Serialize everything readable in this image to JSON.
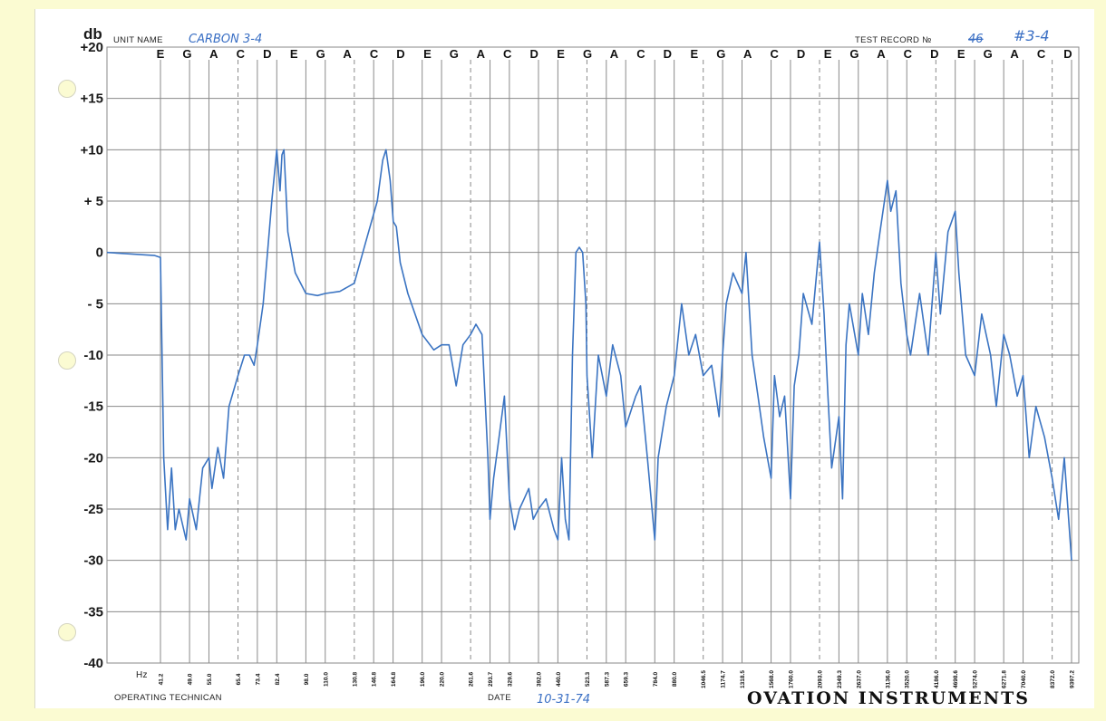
{
  "header": {
    "unit_name_label": "UNIT NAME",
    "unit_name_value": "CARBON 3-4",
    "test_record_label": "TEST RECORD №",
    "test_record_struck": "46",
    "test_record_value": "#3-4",
    "db_label": "db"
  },
  "footer": {
    "technician_label": "OPERATING TECHNICAN",
    "date_label": "DATE",
    "date_value": "10-31-74",
    "brand": "OVATION INSTRUMENTS"
  },
  "colors": {
    "trace": "#3b74c2",
    "grid": "#8a8a8a",
    "handwriting": "#3a6fc4"
  },
  "chart_data": {
    "type": "line",
    "title": "",
    "ylabel": "db",
    "xlabel": "Hz",
    "ylim": [
      -40,
      20
    ],
    "x_scale": "log",
    "grid": true,
    "y_ticks": [
      "+20",
      "+15",
      "+10",
      "+ 5",
      "0",
      "- 5",
      "-10",
      "-15",
      "-20",
      "-25",
      "-30",
      "-35",
      "-40"
    ],
    "note_labels": [
      "E",
      "G",
      "A",
      "C",
      "D",
      "E",
      "G",
      "A",
      "C",
      "D",
      "E",
      "G",
      "A",
      "C",
      "D",
      "E",
      "G",
      "A",
      "C",
      "D",
      "E",
      "G",
      "A",
      "C",
      "D",
      "E",
      "G",
      "A",
      "C",
      "D",
      "E",
      "G",
      "A",
      "C",
      "D"
    ],
    "x_tick_labels": [
      "41.2",
      "49.0",
      "55.0",
      "65.4",
      "73.4",
      "82.4",
      "98.0",
      "110.0",
      "130.8",
      "146.8",
      "164.8",
      "196.0",
      "220.0",
      "261.6",
      "293.7",
      "329.6",
      "392.0",
      "440.0",
      "523.3",
      "587.3",
      "659.3",
      "784.0",
      "880.0",
      "1046.5",
      "1174.7",
      "1318.5",
      "1568.0",
      "1760.0",
      "2093.0",
      "2349.3",
      "2637.0",
      "3136.0",
      "3520.0",
      "4186.0",
      "4698.6",
      "5274.0",
      "6271.8",
      "7040.0",
      "8372.0",
      "9397.2"
    ],
    "series": [
      {
        "name": "",
        "points": [
          [
            30,
            0
          ],
          [
            40,
            -0.3
          ],
          [
            41.2,
            -0.5
          ],
          [
            42,
            -20
          ],
          [
            43,
            -27
          ],
          [
            44,
            -21
          ],
          [
            45,
            -27
          ],
          [
            46,
            -25
          ],
          [
            48,
            -28
          ],
          [
            49,
            -24
          ],
          [
            51,
            -27
          ],
          [
            53,
            -21
          ],
          [
            55,
            -20
          ],
          [
            56,
            -23
          ],
          [
            58,
            -19
          ],
          [
            60,
            -22
          ],
          [
            62,
            -15
          ],
          [
            65.4,
            -12
          ],
          [
            68,
            -10
          ],
          [
            70,
            -10
          ],
          [
            72,
            -11
          ],
          [
            73.4,
            -9
          ],
          [
            76,
            -5
          ],
          [
            78,
            0
          ],
          [
            80,
            5
          ],
          [
            82.4,
            10
          ],
          [
            84,
            6
          ],
          [
            85,
            9.5
          ],
          [
            86,
            10
          ],
          [
            87,
            6
          ],
          [
            88,
            2
          ],
          [
            92,
            -2
          ],
          [
            98,
            -4
          ],
          [
            105,
            -4.2
          ],
          [
            110,
            -4
          ],
          [
            120,
            -3.8
          ],
          [
            130.8,
            -3
          ],
          [
            140,
            1
          ],
          [
            150,
            5
          ],
          [
            155,
            9
          ],
          [
            158,
            10
          ],
          [
            162,
            7
          ],
          [
            165,
            3
          ],
          [
            168,
            2.5
          ],
          [
            172,
            -1
          ],
          [
            180,
            -4
          ],
          [
            196,
            -8
          ],
          [
            210,
            -9.5
          ],
          [
            220,
            -9
          ],
          [
            230,
            -9
          ],
          [
            240,
            -13
          ],
          [
            250,
            -9
          ],
          [
            261.6,
            -8
          ],
          [
            270,
            -7
          ],
          [
            280,
            -8
          ],
          [
            290,
            -20
          ],
          [
            293.7,
            -26
          ],
          [
            300,
            -22
          ],
          [
            310,
            -18
          ],
          [
            320,
            -14
          ],
          [
            329.6,
            -24
          ],
          [
            340,
            -27
          ],
          [
            350,
            -25
          ],
          [
            360,
            -24
          ],
          [
            370,
            -23
          ],
          [
            380,
            -26
          ],
          [
            392,
            -25
          ],
          [
            410,
            -24
          ],
          [
            430,
            -27
          ],
          [
            440,
            -28
          ],
          [
            450,
            -20
          ],
          [
            460,
            -26
          ],
          [
            470,
            -28
          ],
          [
            480,
            -10
          ],
          [
            490,
            0
          ],
          [
            500,
            0.5
          ],
          [
            510,
            0
          ],
          [
            520,
            -5
          ],
          [
            523.3,
            -12
          ],
          [
            540,
            -20
          ],
          [
            560,
            -10
          ],
          [
            587.3,
            -14
          ],
          [
            610,
            -9
          ],
          [
            640,
            -12
          ],
          [
            659.3,
            -17
          ],
          [
            700,
            -14
          ],
          [
            720,
            -13
          ],
          [
            750,
            -20
          ],
          [
            784,
            -28
          ],
          [
            800,
            -20
          ],
          [
            840,
            -15
          ],
          [
            880,
            -12
          ],
          [
            920,
            -5
          ],
          [
            960,
            -10
          ],
          [
            1000,
            -8
          ],
          [
            1046.5,
            -12
          ],
          [
            1100,
            -11
          ],
          [
            1150,
            -16
          ],
          [
            1174.7,
            -10
          ],
          [
            1200,
            -5
          ],
          [
            1250,
            -2
          ],
          [
            1318.5,
            -4
          ],
          [
            1350,
            0
          ],
          [
            1400,
            -10
          ],
          [
            1450,
            -14
          ],
          [
            1500,
            -18
          ],
          [
            1568,
            -22
          ],
          [
            1600,
            -12
          ],
          [
            1650,
            -16
          ],
          [
            1700,
            -14
          ],
          [
            1760,
            -24
          ],
          [
            1800,
            -13
          ],
          [
            1850,
            -10
          ],
          [
            1900,
            -4
          ],
          [
            2000,
            -7
          ],
          [
            2093,
            1
          ],
          [
            2150,
            -6
          ],
          [
            2200,
            -14
          ],
          [
            2250,
            -21
          ],
          [
            2349.3,
            -16
          ],
          [
            2400,
            -24
          ],
          [
            2450,
            -9
          ],
          [
            2500,
            -5
          ],
          [
            2637,
            -10
          ],
          [
            2700,
            -4
          ],
          [
            2800,
            -8
          ],
          [
            2900,
            -2
          ],
          [
            3000,
            2
          ],
          [
            3136,
            7
          ],
          [
            3200,
            4
          ],
          [
            3300,
            6
          ],
          [
            3400,
            -3
          ],
          [
            3520,
            -8
          ],
          [
            3600,
            -10
          ],
          [
            3800,
            -4
          ],
          [
            4000,
            -10
          ],
          [
            4186,
            0
          ],
          [
            4300,
            -6
          ],
          [
            4500,
            2
          ],
          [
            4698.6,
            4
          ],
          [
            4800,
            -2
          ],
          [
            5000,
            -10
          ],
          [
            5274,
            -12
          ],
          [
            5500,
            -6
          ],
          [
            5800,
            -10
          ],
          [
            6000,
            -15
          ],
          [
            6271.8,
            -8
          ],
          [
            6500,
            -10
          ],
          [
            6800,
            -14
          ],
          [
            7040,
            -12
          ],
          [
            7300,
            -20
          ],
          [
            7600,
            -15
          ],
          [
            8000,
            -18
          ],
          [
            8372,
            -22
          ],
          [
            8700,
            -26
          ],
          [
            9000,
            -20
          ],
          [
            9397.2,
            -30
          ]
        ]
      }
    ]
  }
}
